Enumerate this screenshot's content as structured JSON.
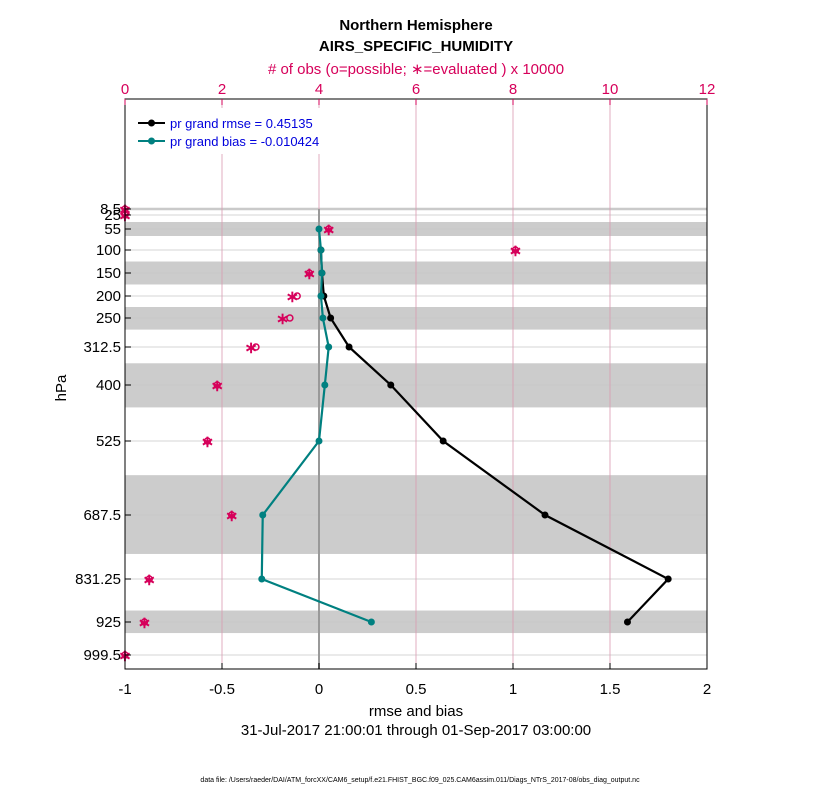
{
  "chart_data": {
    "type": "line",
    "title_line1": "Northern Hemisphere",
    "title_line2": "AIRS_SPECIFIC_HUMIDITY",
    "top_axis_label": "# of obs (o=possible; ∗=evaluated ) x 10000",
    "xlabel": "rmse and bias",
    "ylabel": "hPa",
    "date_range": "31-Jul-2017 21:00:01 through 01-Sep-2017 03:00:00",
    "footer": "data file: /Users/raeder/DAI/ATM_forcXX/CAM6_setup/f.e21.FHIST_BGC.f09_025.CAM6assim.011/Diags_NTrS_2017-08/obs_diag_output.nc",
    "xlim": [
      -1,
      2
    ],
    "xticks": [
      "-1",
      "-0.5",
      "0",
      "0.5",
      "1",
      "1.5",
      "2"
    ],
    "top_xlim": [
      0,
      12
    ],
    "top_xticks": [
      "0",
      "2",
      "4",
      "6",
      "8",
      "10",
      "12"
    ],
    "levels": [
      8.5,
      25,
      55,
      100,
      150,
      200,
      250,
      312.5,
      400,
      525,
      687.5,
      831.25,
      925,
      999.5
    ],
    "level_labels": [
      "8.5",
      "25",
      "55",
      "100",
      "150",
      "200",
      "250",
      "312.5",
      "400",
      "525",
      "687.5",
      "831.25",
      "925",
      "999.5"
    ],
    "shaded_bands": [
      [
        5,
        12
      ],
      [
        40,
        70
      ],
      [
        125,
        175
      ],
      [
        225,
        275
      ],
      [
        350,
        450
      ],
      [
        600,
        775
      ],
      [
        900,
        950
      ]
    ],
    "series": [
      {
        "name": "rmse",
        "legend": "pr grand rmse = 0.45135",
        "color": "#000000",
        "levels": [
          100,
          150,
          200,
          250,
          312.5,
          400,
          525,
          687.5,
          831.25,
          925
        ],
        "values": [
          0.01,
          0.015,
          0.025,
          0.06,
          0.155,
          0.37,
          0.64,
          1.165,
          1.8,
          1.59
        ]
      },
      {
        "name": "bias",
        "legend": "pr grand bias = -0.010424",
        "color": "#008080",
        "levels": [
          55,
          100,
          150,
          200,
          250,
          312.5,
          400,
          525,
          687.5,
          831.25,
          925
        ],
        "values": [
          0.0,
          0.01,
          0.015,
          0.01,
          0.02,
          0.05,
          0.03,
          0.0,
          -0.29,
          -0.295,
          0.27
        ]
      }
    ],
    "obs_count": {
      "name": "# of obs x 10000",
      "color": "#d6005a",
      "levels": [
        8.5,
        25,
        55,
        100,
        150,
        200,
        250,
        312.5,
        400,
        525,
        687.5,
        831.25,
        925,
        999.5
      ],
      "possible": [
        0.0,
        0.0,
        4.2,
        8.05,
        3.8,
        3.55,
        3.4,
        2.7,
        1.9,
        1.7,
        2.2,
        0.5,
        0.4,
        0.0
      ],
      "evaluated": [
        0.0,
        0.0,
        4.2,
        8.05,
        3.8,
        3.45,
        3.25,
        2.6,
        1.9,
        1.7,
        2.2,
        0.5,
        0.4,
        0.0
      ]
    }
  }
}
